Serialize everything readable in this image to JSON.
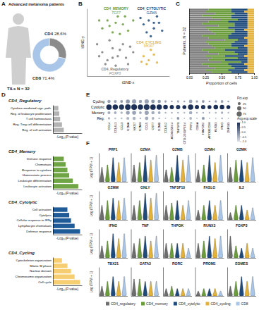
{
  "chart_data": [
    {
      "type": "pie",
      "panel": "A",
      "title": "Advanced melanoma patients",
      "categories": [
        "CD4",
        "CD8"
      ],
      "values": [
        28.6,
        71.4
      ],
      "value_labels": [
        "28.6%",
        "71.4%"
      ],
      "colors": [
        "#8c8c8c",
        "#a9c6e8"
      ],
      "annotations": [
        "TILs N = 32"
      ]
    },
    {
      "type": "scatter",
      "panel": "B",
      "x_label": "tSNE-x",
      "y_label": "tSNE-y",
      "xlim": [
        -40,
        40
      ],
      "ylim": [
        -45,
        40
      ],
      "tick_labels": false,
      "series": [
        {
          "name": "CD4_Regulatory",
          "gene": "FOXP3",
          "color": "#7f7f7f",
          "x": [
            -30,
            -25,
            -20,
            -15,
            -10,
            -5,
            -22,
            -12,
            -2,
            5,
            -28,
            -18,
            -8,
            0,
            -15,
            2
          ],
          "y": [
            -5,
            -15,
            -25,
            -10,
            -20,
            -5,
            -30,
            -32,
            -22,
            -15,
            -20,
            0,
            -12,
            -30,
            -22,
            -8
          ]
        },
        {
          "name": "CD4_MEMORY",
          "gene": "TCF7",
          "color": "#6b9c3c",
          "x": [
            -25,
            -20,
            -15,
            -10,
            -5,
            0,
            -18,
            -12,
            -28,
            -3,
            -8,
            5
          ],
          "y": [
            15,
            25,
            10,
            30,
            20,
            12,
            18,
            22,
            25,
            30,
            8,
            25
          ]
        },
        {
          "name": "CD4_CYTOLYTIC",
          "gene": "GZMA",
          "color": "#1f4a7c",
          "x": [
            15,
            20,
            25,
            30,
            18,
            28,
            22,
            33,
            12,
            25
          ],
          "y": [
            20,
            25,
            15,
            22,
            10,
            30,
            5,
            12,
            28,
            22
          ]
        },
        {
          "name": "CD4_CYCLING",
          "gene": "MKI67",
          "color": "#e4b23a",
          "x": [
            15,
            20,
            25,
            18,
            22,
            28,
            13
          ],
          "y": [
            -20,
            -25,
            -18,
            -30,
            -12,
            -28,
            -27
          ]
        }
      ]
    },
    {
      "type": "bar",
      "panel": "C",
      "orientation": "horizontal",
      "stacked": true,
      "tick_labels": "x",
      "categories": [
        null,
        null,
        null,
        null,
        null,
        null,
        null,
        null,
        null,
        null,
        null,
        null,
        null,
        null,
        null,
        null,
        null,
        null,
        null,
        null,
        null,
        null,
        null,
        null,
        null,
        null,
        null,
        null,
        null,
        null,
        null,
        null
      ],
      "x_label": "Proportion of cells",
      "y_label": "Patients, N = 32",
      "xlim": [
        0,
        1
      ],
      "xticks": [
        {
          "value": 0,
          "label": "0.00"
        },
        {
          "value": 0.25,
          "label": "0.25"
        },
        {
          "value": 0.5,
          "label": "0.50"
        },
        {
          "value": 0.75,
          "label": "0.75"
        },
        {
          "value": 1,
          "label": "1.00"
        }
      ],
      "series": [
        {
          "color": "#7f7f7f",
          "values": [
            0.3,
            0.25,
            0.4,
            0.2,
            0.35,
            0.5,
            0.3,
            0.2,
            0.45,
            0.25,
            0.3,
            0.35,
            0.4,
            0.2,
            0.3,
            0.55,
            0.25,
            0.3,
            0.35,
            0.4,
            0.2,
            0.3,
            0.45,
            0.25,
            0.35,
            0.3,
            0.5,
            0.2,
            0.3,
            0.4,
            0.25,
            0.35
          ]
        },
        {
          "color": "#6b9c3c",
          "values": [
            0.35,
            0.4,
            0.3,
            0.45,
            0.3,
            0.25,
            0.3,
            0.5,
            0.25,
            0.35,
            0.4,
            0.35,
            0.25,
            0.4,
            0.3,
            0.2,
            0.45,
            0.35,
            0.3,
            0.35,
            0.35,
            0.4,
            0.3,
            0.3,
            0.4,
            0.25,
            0.3,
            0.4,
            0.35,
            0.3,
            0.35,
            0.3
          ]
        },
        {
          "color": "#1f4a7c",
          "values": [
            0.25,
            0.2,
            0.2,
            0.25,
            0.25,
            0.15,
            0.3,
            0.2,
            0.2,
            0.3,
            0.15,
            0.2,
            0.25,
            0.3,
            0.25,
            0.15,
            0.2,
            0.25,
            0.2,
            0.15,
            0.35,
            0.2,
            0.15,
            0.3,
            0.15,
            0.35,
            0.1,
            0.25,
            0.25,
            0.2,
            0.25,
            0.25
          ]
        },
        {
          "color": "#e4b23a",
          "values": [
            0.1,
            0.15,
            0.1,
            0.1,
            0.1,
            0.1,
            0.1,
            0.1,
            0.1,
            0.1,
            0.15,
            0.1,
            0.1,
            0.1,
            0.15,
            0.1,
            0.1,
            0.1,
            0.15,
            0.1,
            0.1,
            0.1,
            0.1,
            0.15,
            0.1,
            0.1,
            0.1,
            0.15,
            0.1,
            0.1,
            0.15,
            0.1
          ]
        }
      ]
    },
    {
      "type": "bar",
      "panel": "D",
      "orientation": "horizontal",
      "tick_labels": "y",
      "title": "CD4_Regulatory",
      "categories": [
        "Cytokine-mediated sign. path.",
        "Reg. of leukocyte proliferation",
        "T cell homeostasis",
        "Reg. Treg cell differentiation",
        "Reg. of cell activation"
      ],
      "values": [
        3,
        3.5,
        4,
        5,
        6
      ],
      "color": "#b3b3b3",
      "x_label": "-Log₁₀(P-value)",
      "xlim": [
        0,
        16
      ]
    },
    {
      "type": "bar",
      "orientation": "horizontal",
      "tick_labels": "y",
      "title": "CD4_Memory",
      "categories": [
        "Immune response",
        "Chemotaxis",
        "Response to cytokine",
        "Homeostatic process",
        "Leukocyte differentiation",
        "Leukocyte activation"
      ],
      "values": [
        6,
        7,
        8,
        9,
        11,
        14
      ],
      "color": "#6fa544",
      "x_label": "-Log₁₀(P-value)",
      "xlim": [
        0,
        16
      ]
    },
    {
      "type": "bar",
      "orientation": "horizontal",
      "tick_labels": "y",
      "title": "CD4_Cytolytic",
      "categories": [
        "Cell activation",
        "Cytolysis",
        "Cellular response to IFNγ",
        "Lymphocyte chemotaxis",
        "Defense response"
      ],
      "values": [
        8,
        9,
        10,
        12,
        15
      ],
      "color": "#1f5b99",
      "x_label": "-Log₁₀(P-value)",
      "xlim": [
        0,
        16
      ]
    },
    {
      "type": "bar",
      "orientation": "horizontal",
      "tick_labels": "y",
      "title": "CD4_Cycling",
      "categories": [
        "Cytoskeleton organization",
        "Mitotic M phase",
        "Nuclear division",
        "Chromosome organization",
        "Cell cycle"
      ],
      "values": [
        5,
        8,
        10,
        12,
        15
      ],
      "color": "#f7cd72",
      "x_label": "-Log₁₀(P-value)",
      "xlim": [
        0,
        16
      ]
    },
    {
      "type": "dot",
      "panel": "E",
      "categories": [
        "CCL4",
        "CCL4L1",
        "CCL3",
        "GZMA",
        "NKG7",
        "GZMH",
        "CCL5",
        "CST7",
        "GZMB",
        "CCL4L2",
        "AC092580.4",
        "TNFSF9",
        "CTD-2031P19.4",
        "PRF1",
        "CD8A",
        "HAVCR2",
        "APOBEC3H",
        "KLRD1",
        "IFNG",
        "ZNF683"
      ],
      "rows": [
        "Cycling",
        "Cytolytic",
        "Memory",
        "Reg."
      ],
      "pct": [
        [
          30,
          25,
          20,
          45,
          50,
          30,
          55,
          35,
          30,
          15,
          10,
          15,
          10,
          35,
          15,
          20,
          10,
          15,
          20,
          10
        ],
        [
          85,
          80,
          75,
          90,
          95,
          80,
          95,
          85,
          80,
          60,
          50,
          55,
          45,
          80,
          50,
          55,
          45,
          60,
          60,
          45
        ],
        [
          25,
          20,
          15,
          40,
          45,
          20,
          50,
          30,
          20,
          10,
          10,
          10,
          8,
          30,
          10,
          10,
          8,
          10,
          15,
          8
        ],
        [
          15,
          10,
          10,
          25,
          30,
          10,
          35,
          20,
          10,
          5,
          5,
          20,
          5,
          20,
          5,
          25,
          5,
          5,
          10,
          5
        ]
      ],
      "avg": [
        [
          -0.3,
          -0.3,
          -0.2,
          -0.2,
          -0.3,
          -0.3,
          -0.3,
          -0.2,
          -0.2,
          -0.3,
          -0.4,
          -0.4,
          -0.3,
          -0.3,
          -0.3,
          -0.2,
          -0.3,
          -0.3,
          -0.3,
          -0.3
        ],
        [
          1,
          1,
          0.9,
          1,
          1,
          1,
          0.9,
          1,
          1,
          1,
          1,
          0.9,
          1,
          1,
          1,
          0.9,
          1,
          1,
          1,
          1
        ],
        [
          -0.4,
          -0.4,
          -0.5,
          -0.3,
          -0.3,
          -0.4,
          -0.3,
          -0.4,
          -0.4,
          -0.5,
          -0.5,
          -0.5,
          -0.5,
          -0.4,
          -0.5,
          -0.5,
          -0.5,
          -0.5,
          -0.4,
          -0.5
        ],
        [
          -0.5,
          -0.6,
          -0.6,
          -0.5,
          -0.5,
          -0.6,
          -0.4,
          -0.5,
          -0.6,
          -0.6,
          -0.6,
          -0.2,
          -0.6,
          -0.5,
          -0.6,
          -0.2,
          -0.6,
          -0.6,
          -0.5,
          -0.6
        ]
      ],
      "size_title": "Pct.exp",
      "size_ticks": [
        25,
        50,
        75
      ],
      "color_title": "Avg.exp.scale",
      "color_range": [
        -1,
        1
      ],
      "color_ticks": [
        {
          "value": 1,
          "label": "1.0"
        },
        0.5,
        {
          "value": 0,
          "label": "0.0"
        },
        -0.5,
        {
          "value": -1,
          "label": "-1.0"
        }
      ]
    },
    {
      "type": "violin",
      "panel": "F",
      "tick_labels": false,
      "legend": "bottom",
      "categories": [
        "PRF1",
        "GZMA",
        "GZMB",
        "GZMH",
        "GZMK",
        "GZMM",
        "GNLY",
        "TNFSF10",
        "FASLG",
        "IL2",
        "IFNG",
        "TNF",
        "THPOK",
        "RUNX3",
        "FOXP3",
        "TBX21",
        "GATA3",
        "RORC",
        "PROM1",
        "EOMES"
      ],
      "y_label": "Log (TPM + 1)",
      "ylim": [
        0,
        12
      ],
      "series": [
        {
          "name": "CD4_regulatory",
          "color": "#6e6e6e",
          "values": [
            6,
            7,
            5,
            5,
            6,
            6,
            6,
            6,
            4,
            3,
            5,
            6,
            6,
            6,
            9,
            4,
            7,
            3,
            2,
            4
          ]
        },
        {
          "name": "CD4_memory",
          "color": "#6b9c3c",
          "values": [
            7,
            8,
            6,
            7,
            9,
            8,
            8,
            7,
            6,
            6,
            7,
            8,
            6,
            7,
            5,
            6,
            7,
            4,
            3,
            6
          ]
        },
        {
          "name": "CD4_cytolytic",
          "color": "#1f4a7c",
          "values": [
            10,
            11,
            11,
            11,
            9,
            9,
            11,
            8,
            8,
            6,
            10,
            9,
            6,
            9,
            4,
            8,
            6,
            3,
            3,
            8
          ]
        },
        {
          "name": "CD4_cycling",
          "color": "#e4b23a",
          "values": [
            8,
            9,
            9,
            8,
            8,
            8,
            9,
            6,
            6,
            4,
            8,
            7,
            6,
            8,
            6,
            6,
            6,
            3,
            3,
            6
          ]
        },
        {
          "name": "CD8",
          "color": "#a9c6e8",
          "values": [
            10,
            11,
            11,
            11,
            10,
            9,
            11,
            8,
            8,
            5,
            10,
            9,
            4,
            9,
            4,
            8,
            6,
            3,
            2,
            8
          ]
        }
      ]
    }
  ]
}
